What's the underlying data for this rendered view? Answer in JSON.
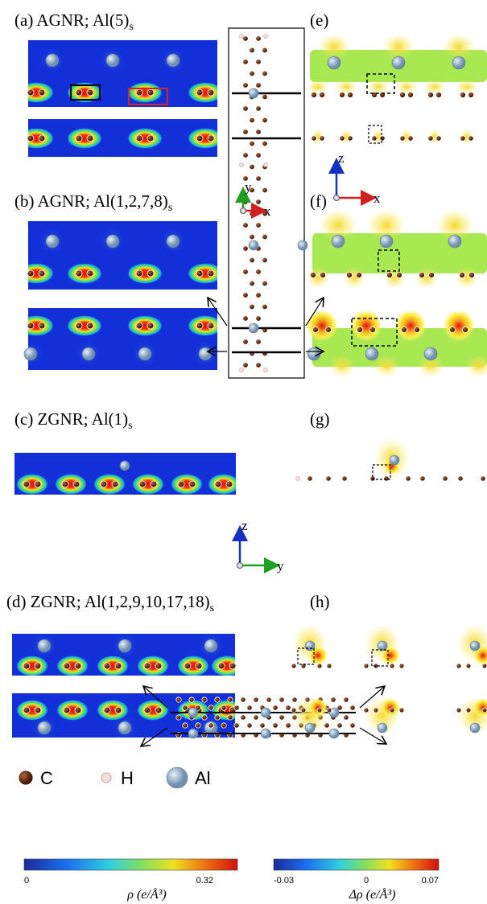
{
  "panels": [
    {
      "label": "(a) AGNR; Al(5)",
      "subscript": "s"
    },
    {
      "label": "(b) AGNR; Al(1,2,7,8)",
      "subscript": "s"
    },
    {
      "label": "(c) ZGNR; Al(1)",
      "subscript": "s"
    },
    {
      "label": "(d) ZGNR; Al(1,2,9,10,17,18)",
      "subscript": "s"
    },
    {
      "label": "(e)"
    },
    {
      "label": "(f)"
    },
    {
      "label": "(g)"
    },
    {
      "label": "(h)"
    }
  ],
  "axes": [
    {
      "vertical": "z",
      "horizontal": "x"
    },
    {
      "vertical": "y",
      "horizontal": "x"
    },
    {
      "vertical": "z",
      "horizontal": "y"
    }
  ],
  "legend": [
    {
      "label": "C"
    },
    {
      "label": "H"
    },
    {
      "label": "Al"
    }
  ],
  "colorbars": [
    {
      "ticks": [
        0,
        0.32
      ],
      "label": "ρ (e/Å³)"
    },
    {
      "ticks": [
        -0.03,
        0,
        0.07
      ],
      "label": "Δρ (e/Å³)"
    }
  ]
}
